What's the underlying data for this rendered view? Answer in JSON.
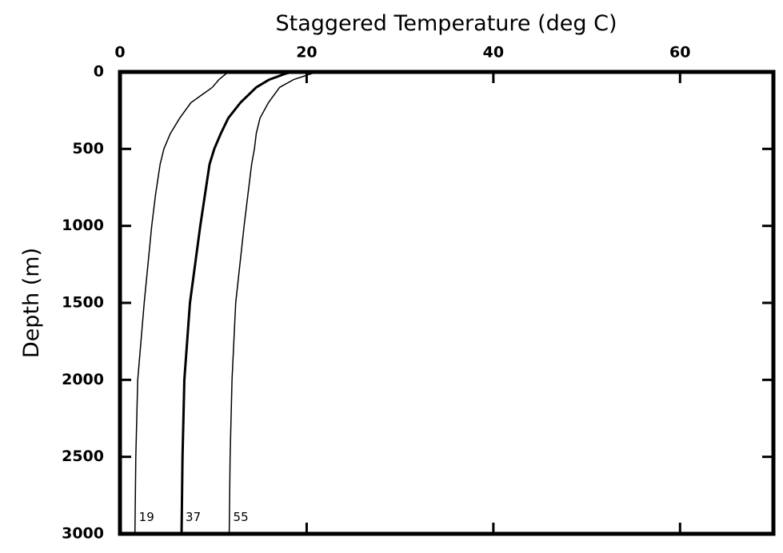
{
  "chart_data": {
    "type": "line",
    "title": "Staggered Temperature (deg C)",
    "y_label": "Depth (m)",
    "y": [
      0,
      10,
      50,
      100,
      200,
      300,
      400,
      500,
      600,
      800,
      1000,
      1500,
      2000,
      2500,
      3000
    ],
    "series": [
      {
        "name": "19",
        "color": "#000000",
        "line_width": 1.5,
        "values": [
          12.0,
          11.4,
          10.6,
          9.9,
          7.6,
          6.4,
          5.4,
          4.7,
          4.3,
          3.8,
          3.4,
          2.6,
          1.9,
          1.7,
          1.6
        ]
      },
      {
        "name": "37",
        "color": "#000000",
        "line_width": 3,
        "values": [
          18.4,
          17.8,
          16.0,
          14.6,
          12.9,
          11.6,
          10.8,
          10.1,
          9.6,
          9.1,
          8.6,
          7.5,
          6.9,
          6.7,
          6.6
        ]
      },
      {
        "name": "55",
        "color": "#000000",
        "line_width": 1.5,
        "values": [
          21.4,
          20.6,
          18.6,
          17.1,
          15.9,
          15.0,
          14.6,
          14.4,
          14.1,
          13.7,
          13.3,
          12.4,
          12.0,
          11.8,
          11.7
        ]
      }
    ],
    "xlim": [
      0,
      70
    ],
    "xticks": [
      0,
      20,
      40,
      60
    ],
    "ylim": [
      0,
      3000
    ],
    "yticks": [
      0,
      500,
      1000,
      1500,
      2000,
      2500,
      3000
    ],
    "y_inverted": true,
    "x_axis_position": "top",
    "grid": false
  }
}
